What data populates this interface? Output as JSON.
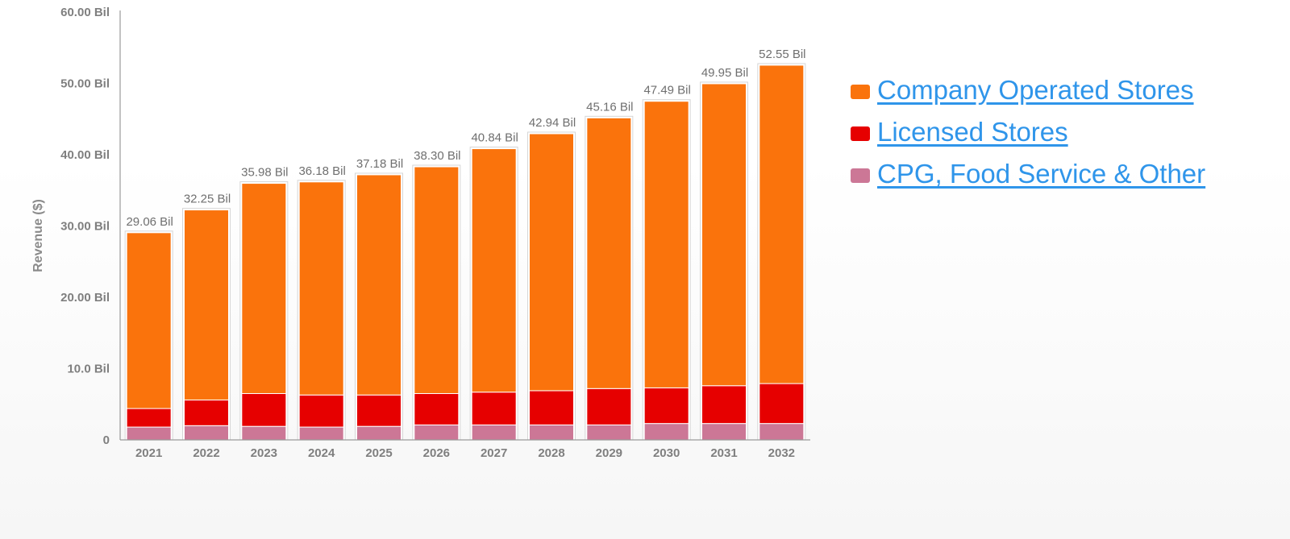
{
  "chart_data": {
    "type": "bar",
    "stacked": true,
    "ylabel": "Revenue ($)",
    "ylim": [
      0,
      60
    ],
    "yticks": [
      {
        "value": 0,
        "label": "0"
      },
      {
        "value": 10,
        "label": "10.0 Bil"
      },
      {
        "value": 20,
        "label": "20.00 Bil"
      },
      {
        "value": 30,
        "label": "30.00 Bil"
      },
      {
        "value": 40,
        "label": "40.00 Bil"
      },
      {
        "value": 50,
        "label": "50.00 Bil"
      },
      {
        "value": 60,
        "label": "60.00 Bil"
      }
    ],
    "categories": [
      "2021",
      "2022",
      "2023",
      "2024",
      "2025",
      "2026",
      "2027",
      "2028",
      "2029",
      "2030",
      "2031",
      "2032"
    ],
    "totals_labels": [
      "29.06 Bil",
      "32.25 Bil",
      "35.98 Bil",
      "36.18 Bil",
      "37.18 Bil",
      "38.30 Bil",
      "40.84 Bil",
      "42.94 Bil",
      "45.16 Bil",
      "47.49 Bil",
      "49.95 Bil",
      "52.55 Bil"
    ],
    "series": [
      {
        "name": "CPG, Food Service & Other",
        "color": "#cc7796",
        "values": [
          1.8,
          2.0,
          1.9,
          1.8,
          1.9,
          2.1,
          2.1,
          2.1,
          2.1,
          2.3,
          2.3,
          2.3
        ]
      },
      {
        "name": "Licensed Stores",
        "color": "#e60000",
        "values": [
          2.6,
          3.6,
          4.6,
          4.5,
          4.4,
          4.4,
          4.6,
          4.8,
          5.1,
          5.0,
          5.3,
          5.6
        ]
      },
      {
        "name": "Company Operated Stores",
        "color": "#fa730c",
        "values": [
          24.66,
          26.65,
          29.48,
          29.88,
          30.88,
          31.8,
          34.14,
          36.04,
          37.96,
          40.19,
          42.35,
          44.65
        ]
      }
    ]
  },
  "legend": [
    {
      "label": "Company Operated Stores",
      "color": "#fa730c"
    },
    {
      "label": "Licensed Stores",
      "color": "#e60000"
    },
    {
      "label": "CPG, Food Service & Other",
      "color": "#cc7796"
    }
  ]
}
